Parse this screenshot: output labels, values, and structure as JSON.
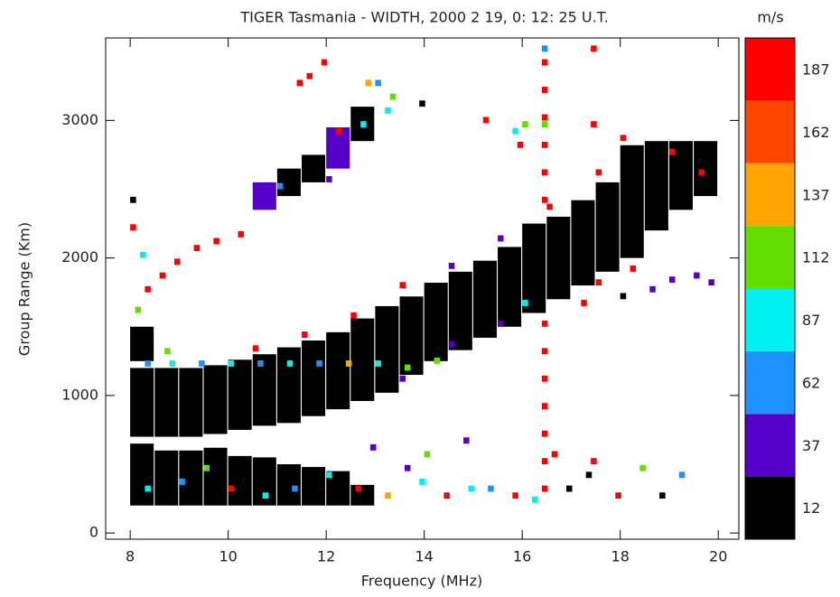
{
  "chart_data": {
    "type": "heatmap",
    "title": "TIGER Tasmania - WIDTH, 2000 2 19, 0: 12: 25 U.T.",
    "x_label": "Frequency (MHz)",
    "y_label": "Group Range (Km)",
    "xlim": [
      7.5,
      20.42
    ],
    "ylim": [
      -45,
      3600
    ],
    "xticks": [
      8,
      10,
      12,
      14,
      16,
      18,
      20
    ],
    "yticks": [
      0,
      1000,
      2000,
      3000
    ],
    "span_width": 0.48,
    "cell_width": 0.12,
    "cell_height": 45,
    "spans": [
      [
        8.0,
        700,
        1200,
        12
      ],
      [
        8.5,
        700,
        1200,
        12
      ],
      [
        9.0,
        700,
        1200,
        12
      ],
      [
        9.5,
        720,
        1220,
        12
      ],
      [
        10.0,
        750,
        1260,
        12
      ],
      [
        10.5,
        780,
        1300,
        12
      ],
      [
        11.0,
        800,
        1350,
        12
      ],
      [
        11.5,
        850,
        1400,
        12
      ],
      [
        12.0,
        900,
        1460,
        12
      ],
      [
        12.5,
        960,
        1560,
        12
      ],
      [
        13.0,
        1020,
        1650,
        12
      ],
      [
        13.5,
        1150,
        1720,
        12
      ],
      [
        14.0,
        1250,
        1820,
        12
      ],
      [
        14.5,
        1330,
        1900,
        12
      ],
      [
        15.0,
        1420,
        1980,
        12
      ],
      [
        15.5,
        1500,
        2080,
        12
      ],
      [
        16.0,
        1600,
        2250,
        12
      ],
      [
        16.5,
        1700,
        2300,
        12
      ],
      [
        17.0,
        1800,
        2420,
        12
      ],
      [
        17.5,
        1900,
        2550,
        12
      ],
      [
        18.0,
        2000,
        2820,
        12
      ],
      [
        18.5,
        2200,
        2850,
        12
      ],
      [
        19.0,
        2350,
        2850,
        12
      ],
      [
        19.5,
        2450,
        2850,
        12
      ],
      [
        8.0,
        200,
        650,
        12
      ],
      [
        8.5,
        200,
        600,
        12
      ],
      [
        9.0,
        200,
        600,
        12
      ],
      [
        9.5,
        200,
        620,
        12
      ],
      [
        10.0,
        200,
        560,
        12
      ],
      [
        10.5,
        200,
        550,
        12
      ],
      [
        11.0,
        200,
        500,
        12
      ],
      [
        11.5,
        200,
        480,
        12
      ],
      [
        12.0,
        200,
        450,
        12
      ],
      [
        12.5,
        200,
        350,
        12
      ],
      [
        10.5,
        2350,
        2550,
        37
      ],
      [
        11.0,
        2450,
        2650,
        12
      ],
      [
        11.5,
        2550,
        2750,
        12
      ],
      [
        12.0,
        2650,
        2950,
        37
      ],
      [
        12.5,
        2850,
        3100,
        12
      ],
      [
        8.0,
        1250,
        1500,
        12
      ]
    ],
    "cells": [
      [
        16.4,
        3400,
        187
      ],
      [
        16.4,
        3200,
        187
      ],
      [
        16.4,
        3000,
        187
      ],
      [
        16.4,
        2800,
        187
      ],
      [
        16.4,
        2600,
        187
      ],
      [
        16.4,
        2400,
        187
      ],
      [
        16.4,
        1500,
        187
      ],
      [
        16.4,
        1300,
        187
      ],
      [
        16.4,
        1100,
        187
      ],
      [
        16.4,
        900,
        187
      ],
      [
        16.4,
        700,
        187
      ],
      [
        16.4,
        500,
        187
      ],
      [
        16.4,
        300,
        187
      ],
      [
        16.4,
        2950,
        112
      ],
      [
        16.4,
        3500,
        62
      ],
      [
        11.9,
        3400,
        187
      ],
      [
        11.6,
        3300,
        187
      ],
      [
        11.4,
        3250,
        187
      ],
      [
        12.8,
        3250,
        137
      ],
      [
        13.0,
        3250,
        62
      ],
      [
        13.3,
        3150,
        112
      ],
      [
        13.2,
        3050,
        87
      ],
      [
        12.7,
        2950,
        87
      ],
      [
        12.2,
        2900,
        187
      ],
      [
        9.7,
        2100,
        187
      ],
      [
        9.3,
        2050,
        187
      ],
      [
        8.9,
        1950,
        187
      ],
      [
        8.6,
        1850,
        187
      ],
      [
        8.3,
        1750,
        187
      ],
      [
        8.0,
        2200,
        187
      ],
      [
        8.0,
        2400,
        12
      ],
      [
        8.2,
        2000,
        87
      ],
      [
        8.1,
        1600,
        112
      ],
      [
        8.7,
        1300,
        112
      ],
      [
        10.2,
        2150,
        187
      ],
      [
        12.0,
        2550,
        37
      ],
      [
        11.0,
        2500,
        62
      ],
      [
        8.3,
        1210,
        62
      ],
      [
        8.8,
        1210,
        87
      ],
      [
        9.4,
        1210,
        62
      ],
      [
        10.0,
        1210,
        87
      ],
      [
        10.6,
        1210,
        62
      ],
      [
        11.2,
        1210,
        87
      ],
      [
        11.8,
        1210,
        62
      ],
      [
        12.4,
        1210,
        137
      ],
      [
        13.0,
        1210,
        87
      ],
      [
        13.6,
        1180,
        112
      ],
      [
        14.2,
        1230,
        112
      ],
      [
        10.5,
        1320,
        187
      ],
      [
        11.5,
        1420,
        187
      ],
      [
        12.5,
        1560,
        187
      ],
      [
        13.5,
        1780,
        187
      ],
      [
        14.5,
        1920,
        37
      ],
      [
        15.5,
        2120,
        37
      ],
      [
        16.5,
        2350,
        187
      ],
      [
        17.5,
        2600,
        187
      ],
      [
        18.0,
        2850,
        187
      ],
      [
        19.0,
        2750,
        187
      ],
      [
        19.6,
        2600,
        187
      ],
      [
        13.5,
        1100,
        37
      ],
      [
        14.5,
        1350,
        37
      ],
      [
        15.5,
        1500,
        37
      ],
      [
        16.0,
        1650,
        87
      ],
      [
        17.5,
        1800,
        187
      ],
      [
        18.2,
        1900,
        187
      ],
      [
        18.6,
        1750,
        37
      ],
      [
        19.0,
        1820,
        37
      ],
      [
        19.5,
        1850,
        37
      ],
      [
        19.8,
        1800,
        37
      ],
      [
        18.0,
        1700,
        12
      ],
      [
        17.2,
        1650,
        187
      ],
      [
        8.3,
        300,
        87
      ],
      [
        9.0,
        350,
        62
      ],
      [
        9.5,
        450,
        112
      ],
      [
        10.0,
        300,
        187
      ],
      [
        10.7,
        250,
        87
      ],
      [
        11.3,
        300,
        62
      ],
      [
        12.0,
        400,
        87
      ],
      [
        12.6,
        300,
        187
      ],
      [
        13.2,
        250,
        137
      ],
      [
        13.9,
        350,
        87
      ],
      [
        14.4,
        250,
        187
      ],
      [
        14.9,
        300,
        87
      ],
      [
        15.3,
        300,
        62
      ],
      [
        15.8,
        250,
        187
      ],
      [
        16.2,
        220,
        87
      ],
      [
        16.9,
        300,
        12
      ],
      [
        17.3,
        400,
        12
      ],
      [
        17.9,
        250,
        187
      ],
      [
        18.4,
        450,
        112
      ],
      [
        19.2,
        400,
        62
      ],
      [
        18.8,
        250,
        12
      ],
      [
        14.0,
        550,
        112
      ],
      [
        14.8,
        650,
        37
      ],
      [
        16.6,
        550,
        187
      ],
      [
        17.4,
        500,
        187
      ],
      [
        13.6,
        450,
        37
      ],
      [
        12.9,
        600,
        37
      ],
      [
        15.2,
        2980,
        187
      ],
      [
        15.8,
        2900,
        87
      ],
      [
        15.9,
        2800,
        187
      ],
      [
        17.4,
        2950,
        187
      ],
      [
        17.4,
        3500,
        187
      ],
      [
        13.9,
        3100,
        12
      ],
      [
        16.0,
        2950,
        112
      ]
    ],
    "colorbar": {
      "label": "m/s",
      "bins": [
        0,
        25,
        50,
        75,
        100,
        125,
        150,
        175,
        200
      ],
      "colors": [
        "#000000",
        "#5500c8",
        "#1e90ff",
        "#00f0f0",
        "#66dd00",
        "#ffa500",
        "#ff4500",
        "#ff0000"
      ],
      "ticks": [
        12,
        37,
        62,
        87,
        112,
        137,
        162,
        187
      ]
    }
  }
}
